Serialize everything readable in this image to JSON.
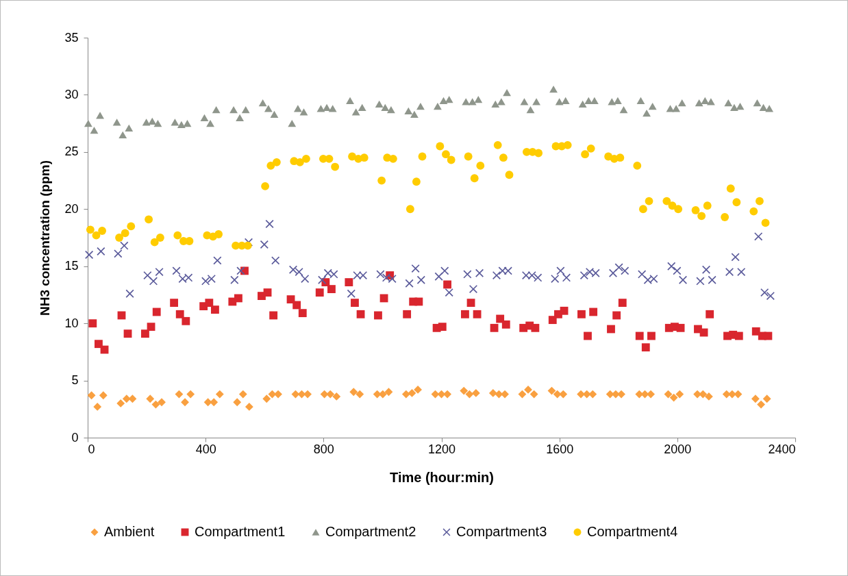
{
  "chart_data": {
    "type": "scatter",
    "xlabel": "Time (hour:min)",
    "ylabel": "NH3 concentration (ppm)",
    "xlim": [
      0,
      2400
    ],
    "xticks": [
      0,
      400,
      800,
      1200,
      1600,
      2000,
      2400
    ],
    "ylim": [
      0,
      35
    ],
    "yticks": [
      0,
      5,
      10,
      15,
      20,
      25,
      30,
      35
    ],
    "legend": "bottom",
    "series": [
      {
        "name": "Ambient",
        "color": "#f9a040",
        "marker": "diamond",
        "x": [
          13,
          33,
          53,
          112,
          132,
          152,
          212,
          231,
          251,
          310,
          330,
          349,
          408,
          428,
          448,
          507,
          527,
          548,
          607,
          626,
          646,
          705,
          726,
          746,
          803,
          823,
          844,
          902,
          923,
          982,
          1001,
          1021,
          1080,
          1100,
          1120,
          1179,
          1200,
          1220,
          1276,
          1295,
          1317,
          1375,
          1395,
          1415,
          1474,
          1494,
          1514,
          1574,
          1593,
          1613,
          1673,
          1693,
          1713,
          1772,
          1791,
          1810,
          1871,
          1890,
          1910,
          1969,
          1988,
          2008,
          2068,
          2087,
          2107,
          2167,
          2186,
          2206,
          2265,
          2284,
          2304
        ],
        "values": [
          3.7,
          2.7,
          3.7,
          3.0,
          3.4,
          3.4,
          3.4,
          2.9,
          3.1,
          3.8,
          3.1,
          3.8,
          3.1,
          3.1,
          3.8,
          3.1,
          3.8,
          2.7,
          3.4,
          3.8,
          3.8,
          3.8,
          3.8,
          3.8,
          3.8,
          3.8,
          3.6,
          4.0,
          3.8,
          3.8,
          3.8,
          4.0,
          3.8,
          3.9,
          4.2,
          3.8,
          3.8,
          3.8,
          4.1,
          3.8,
          3.9,
          3.9,
          3.8,
          3.8,
          3.8,
          4.2,
          3.8,
          4.1,
          3.8,
          3.8,
          3.8,
          3.8,
          3.8,
          3.8,
          3.8,
          3.8,
          3.8,
          3.8,
          3.8,
          3.8,
          3.5,
          3.8,
          3.8,
          3.8,
          3.6,
          3.8,
          3.8,
          3.8,
          3.4,
          2.9,
          3.4
        ]
      },
      {
        "name": "Compartment1",
        "color": "#d9262e",
        "marker": "square",
        "x": [
          17,
          37,
          57,
          115,
          136,
          195,
          215,
          234,
          293,
          313,
          333,
          393,
          412,
          432,
          491,
          511,
          532,
          590,
          610,
          630,
          689,
          709,
          729,
          787,
          807,
          827,
          886,
          906,
          926,
          985,
          1005,
          1025,
          1083,
          1104,
          1123,
          1184,
          1203,
          1220,
          1280,
          1300,
          1321,
          1379,
          1399,
          1419,
          1478,
          1499,
          1518,
          1577,
          1596,
          1616,
          1675,
          1696,
          1715,
          1775,
          1794,
          1814,
          1872,
          1893,
          1912,
          1972,
          1991,
          2011,
          2070,
          2090,
          2110,
          2170,
          2189,
          2209,
          2267,
          2288,
          2308
        ],
        "values": [
          10.0,
          8.2,
          7.7,
          10.7,
          9.1,
          9.1,
          9.7,
          11.0,
          11.8,
          10.8,
          10.2,
          11.5,
          11.8,
          11.2,
          11.9,
          12.2,
          14.6,
          12.4,
          12.7,
          10.7,
          12.1,
          11.6,
          10.9,
          12.7,
          13.6,
          13.0,
          13.6,
          11.8,
          10.8,
          10.7,
          12.2,
          14.2,
          10.8,
          11.9,
          11.9,
          9.6,
          9.7,
          13.4,
          10.8,
          11.8,
          10.8,
          9.6,
          10.4,
          9.9,
          9.6,
          9.8,
          9.6,
          10.3,
          10.8,
          11.1,
          10.8,
          8.9,
          11.0,
          9.5,
          10.7,
          11.8,
          8.9,
          7.9,
          8.9,
          9.6,
          9.7,
          9.6,
          9.5,
          9.2,
          10.8,
          8.9,
          9.0,
          8.9,
          9.3,
          8.9,
          8.9
        ]
      },
      {
        "name": "Compartment2",
        "color": "#8f968c",
        "marker": "triangle",
        "x": [
          2,
          22,
          42,
          99,
          119,
          140,
          199,
          219,
          238,
          296,
          318,
          338,
          396,
          416,
          436,
          495,
          516,
          536,
          594,
          613,
          633,
          693,
          713,
          733,
          791,
          811,
          831,
          890,
          910,
          931,
          989,
          1009,
          1029,
          1088,
          1108,
          1129,
          1187,
          1207,
          1226,
          1283,
          1305,
          1325,
          1383,
          1403,
          1422,
          1481,
          1502,
          1522,
          1580,
          1600,
          1621,
          1679,
          1699,
          1719,
          1778,
          1798,
          1818,
          1876,
          1896,
          1916,
          1976,
          1996,
          2016,
          2074,
          2094,
          2114,
          2173,
          2193,
          2213,
          2271,
          2292,
          2312
        ],
        "values": [
          27.5,
          26.9,
          28.2,
          27.6,
          26.5,
          27.1,
          27.6,
          27.7,
          27.5,
          27.6,
          27.4,
          27.5,
          28.0,
          27.5,
          28.7,
          28.7,
          28.0,
          28.7,
          29.3,
          28.8,
          28.3,
          27.5,
          28.8,
          28.5,
          28.8,
          28.9,
          28.8,
          29.5,
          28.5,
          28.9,
          29.2,
          28.9,
          28.7,
          28.6,
          28.3,
          29.0,
          29.0,
          29.5,
          29.6,
          29.4,
          29.4,
          29.6,
          29.2,
          29.4,
          30.2,
          29.4,
          28.7,
          29.4,
          30.5,
          29.4,
          29.5,
          29.2,
          29.5,
          29.5,
          29.4,
          29.5,
          28.7,
          29.5,
          28.4,
          29.0,
          28.8,
          28.8,
          29.3,
          29.3,
          29.5,
          29.4,
          29.3,
          28.9,
          29.0,
          29.3,
          28.9,
          28.8
        ]
      },
      {
        "name": "Compartment3",
        "color": "#5b5b9b",
        "marker": "cross",
        "x": [
          5,
          45,
          103,
          124,
          143,
          203,
          223,
          243,
          301,
          322,
          342,
          400,
          420,
          440,
          498,
          519,
          546,
          599,
          617,
          637,
          697,
          717,
          737,
          795,
          815,
          835,
          894,
          914,
          934,
          993,
          1013,
          1033,
          1091,
          1112,
          1131,
          1191,
          1211,
          1226,
          1288,
          1308,
          1329,
          1387,
          1407,
          1426,
          1487,
          1507,
          1527,
          1585,
          1604,
          1624,
          1684,
          1703,
          1723,
          1782,
          1802,
          1822,
          1880,
          1900,
          1920,
          1980,
          1999,
          2019,
          2078,
          2098,
          2118,
          2177,
          2197,
          2217,
          2275,
          2296,
          2316
        ],
        "values": [
          16.0,
          16.3,
          16.1,
          16.8,
          12.6,
          14.2,
          13.7,
          14.5,
          14.6,
          13.9,
          14.0,
          13.7,
          13.9,
          15.5,
          13.8,
          14.6,
          17.1,
          16.9,
          18.7,
          15.5,
          14.7,
          14.5,
          13.9,
          13.8,
          14.4,
          14.3,
          12.6,
          14.2,
          14.2,
          14.3,
          14.0,
          13.9,
          13.5,
          14.8,
          13.8,
          14.1,
          14.6,
          12.7,
          14.3,
          13.0,
          14.4,
          14.2,
          14.6,
          14.6,
          14.2,
          14.2,
          14.0,
          13.9,
          14.6,
          14.0,
          14.2,
          14.5,
          14.4,
          14.4,
          14.9,
          14.6,
          14.3,
          13.8,
          13.9,
          15.0,
          14.6,
          13.8,
          13.7,
          14.7,
          13.8,
          14.5,
          15.8,
          14.5,
          17.6,
          12.7,
          12.4
        ]
      },
      {
        "name": "Compartment4",
        "color": "#ffcc00",
        "marker": "circle",
        "x": [
          9,
          29,
          49,
          107,
          127,
          147,
          207,
          227,
          246,
          305,
          325,
          345,
          405,
          425,
          444,
          502,
          523,
          543,
          602,
          621,
          641,
          700,
          720,
          741,
          799,
          819,
          839,
          897,
          918,
          938,
          997,
          1016,
          1036,
          1094,
          1115,
          1135,
          1195,
          1215,
          1233,
          1291,
          1312,
          1332,
          1391,
          1410,
          1430,
          1489,
          1509,
          1529,
          1588,
          1608,
          1628,
          1687,
          1707,
          1766,
          1786,
          1806,
          1864,
          1884,
          1904,
          1964,
          1983,
          2003,
          2062,
          2082,
          2102,
          2161,
          2181,
          2201,
          2259,
          2279,
          2299
        ],
        "values": [
          18.2,
          17.7,
          18.1,
          17.5,
          17.9,
          18.5,
          19.1,
          17.1,
          17.5,
          17.7,
          17.2,
          17.2,
          17.7,
          17.6,
          17.8,
          16.8,
          16.8,
          16.8,
          22.0,
          23.8,
          24.1,
          24.2,
          24.1,
          24.4,
          24.4,
          24.4,
          23.7,
          24.6,
          24.4,
          24.5,
          22.5,
          24.5,
          24.4,
          20.0,
          22.4,
          24.6,
          25.5,
          24.8,
          24.3,
          24.6,
          22.7,
          23.8,
          25.6,
          24.5,
          23.0,
          25.0,
          25.0,
          24.9,
          25.5,
          25.5,
          25.6,
          24.8,
          25.3,
          24.6,
          24.4,
          24.5,
          23.8,
          20.0,
          20.7,
          20.7,
          20.3,
          20.0,
          19.9,
          19.4,
          20.3,
          19.3,
          21.8,
          20.6,
          19.8,
          20.7,
          18.8
        ]
      }
    ]
  }
}
